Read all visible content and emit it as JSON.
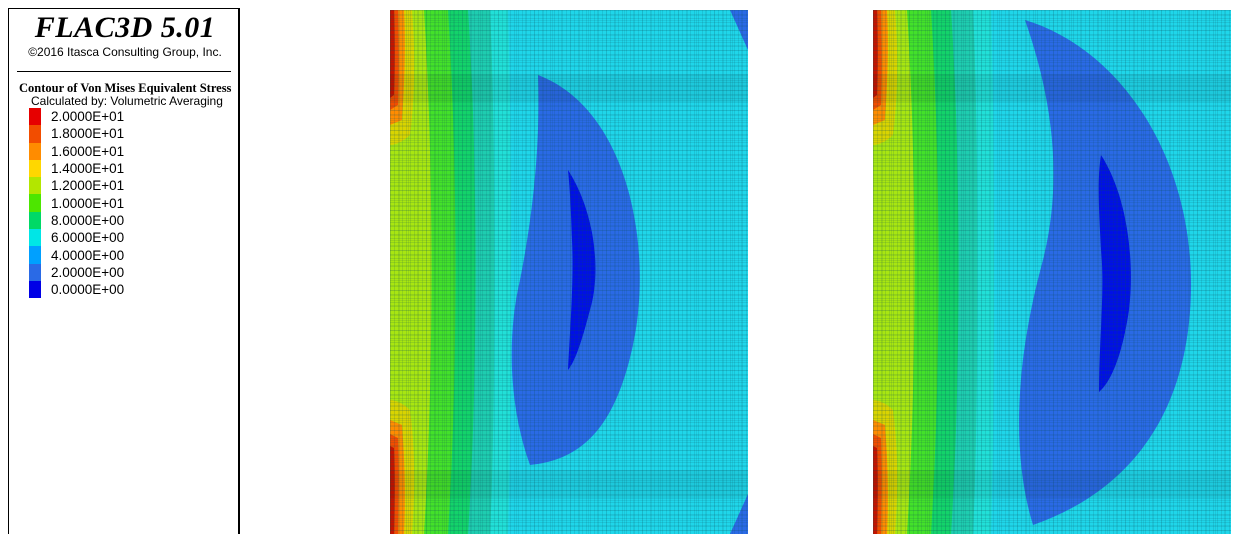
{
  "header": {
    "title": "FLAC3D 5.01",
    "copyright": "©2016 Itasca Consulting Group, Inc."
  },
  "legend": {
    "heading": "Contour of Von Mises Equivalent Stress",
    "subheading": "Calculated by: Volumetric Averaging",
    "items": [
      {
        "label": "2.0000E+01",
        "color": "#e60000"
      },
      {
        "label": "1.8000E+01",
        "color": "#f24d00"
      },
      {
        "label": "1.6000E+01",
        "color": "#ff8c00"
      },
      {
        "label": "1.4000E+01",
        "color": "#ffd700"
      },
      {
        "label": "1.2000E+01",
        "color": "#b3e600"
      },
      {
        "label": "1.0000E+01",
        "color": "#4de600"
      },
      {
        "label": "8.0000E+00",
        "color": "#00d966"
      },
      {
        "label": "6.0000E+00",
        "color": "#00e6e6"
      },
      {
        "label": "4.0000E+00",
        "color": "#00a0ff"
      },
      {
        "label": "2.0000E+00",
        "color": "#2a6ae6"
      },
      {
        "label": "0.0000E+00",
        "color": "#0000e6"
      }
    ]
  },
  "colors": {
    "bg_cyan": "#1fd6ea",
    "grid_line": "#0a4a55"
  }
}
